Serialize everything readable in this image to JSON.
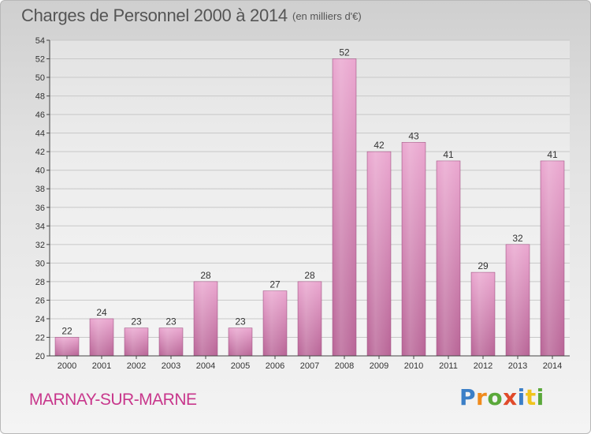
{
  "header": {
    "title": "Charges de Personnel 2000 à 2014",
    "subtitle": "(en milliers d'€)"
  },
  "footer": {
    "commune": "MARNAY-SUR-MARNE",
    "logo_text": "Proxiti"
  },
  "colors": {
    "bar_top": "#eaa6cf",
    "bar_bottom": "#b86496",
    "commune_text": "#c8378c",
    "text": "#555555"
  },
  "chart_data": {
    "type": "bar",
    "categories": [
      "2000",
      "2001",
      "2002",
      "2003",
      "2004",
      "2005",
      "2006",
      "2007",
      "2008",
      "2009",
      "2010",
      "2011",
      "2012",
      "2013",
      "2014"
    ],
    "values": [
      22,
      24,
      23,
      23,
      28,
      23,
      27,
      28,
      52,
      42,
      43,
      41,
      29,
      32,
      41
    ],
    "data_labels": [
      "22",
      "24",
      "23",
      "23",
      "28",
      "23",
      "27",
      "28",
      "52",
      "42",
      "43",
      "41",
      "29",
      "32",
      "41"
    ],
    "ylim": [
      20,
      54
    ],
    "yticks": [
      20,
      22,
      24,
      26,
      28,
      30,
      32,
      34,
      36,
      38,
      40,
      42,
      44,
      46,
      48,
      50,
      52,
      54
    ],
    "grid": true,
    "title": "Charges de Personnel 2000 à 2014",
    "xlabel": "",
    "ylabel": ""
  }
}
